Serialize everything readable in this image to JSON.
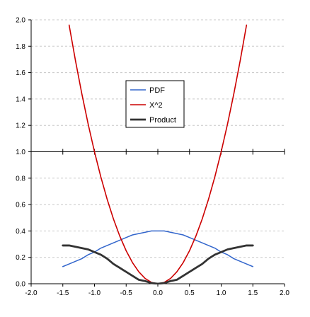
{
  "chart_data": {
    "type": "line",
    "title": "",
    "xlabel": "",
    "ylabel": "",
    "xlim": [
      -2.0,
      2.0
    ],
    "ylim": [
      0.0,
      2.0
    ],
    "x_ticks": [
      "-2.0",
      "-1.5",
      "-1.0",
      "-0.5",
      "0.0",
      "0.5",
      "1.0",
      "1.5",
      "2.0"
    ],
    "y_ticks": [
      "0.0",
      "0.2",
      "0.4",
      "0.6",
      "0.8",
      "1.0",
      "1.2",
      "1.4",
      "1.6",
      "1.8",
      "2.0"
    ],
    "y_gridlines": true,
    "axis_crossing_y": 1.0,
    "legend_position": "center",
    "legend": [
      "PDF",
      "X^2",
      "Product"
    ],
    "series": [
      {
        "name": "PDF",
        "color": "#3366cc",
        "x": [
          -1.5,
          -1.4,
          -1.3,
          -1.2,
          -1.1,
          -1.0,
          -0.9,
          -0.8,
          -0.7,
          -0.6,
          -0.5,
          -0.4,
          -0.3,
          -0.2,
          -0.1,
          0.0,
          0.1,
          0.2,
          0.3,
          0.4,
          0.5,
          0.6,
          0.7,
          0.8,
          0.9,
          1.0,
          1.1,
          1.2,
          1.3,
          1.4,
          1.5
        ],
        "values": [
          0.13,
          0.15,
          0.17,
          0.19,
          0.22,
          0.24,
          0.27,
          0.29,
          0.31,
          0.33,
          0.35,
          0.37,
          0.38,
          0.39,
          0.4,
          0.4,
          0.4,
          0.39,
          0.38,
          0.37,
          0.35,
          0.33,
          0.31,
          0.29,
          0.27,
          0.24,
          0.22,
          0.19,
          0.17,
          0.15,
          0.13
        ]
      },
      {
        "name": "X^2",
        "color": "#cc0000",
        "x": [
          -1.4,
          -1.3,
          -1.2,
          -1.1,
          -1.0,
          -0.9,
          -0.8,
          -0.7,
          -0.6,
          -0.5,
          -0.4,
          -0.3,
          -0.2,
          -0.1,
          0.0,
          0.1,
          0.2,
          0.3,
          0.4,
          0.5,
          0.6,
          0.7,
          0.8,
          0.9,
          1.0,
          1.1,
          1.2,
          1.3,
          1.4
        ],
        "values": [
          1.96,
          1.69,
          1.44,
          1.21,
          1.0,
          0.81,
          0.64,
          0.49,
          0.36,
          0.25,
          0.16,
          0.09,
          0.04,
          0.01,
          0.0,
          0.01,
          0.04,
          0.09,
          0.16,
          0.25,
          0.36,
          0.49,
          0.64,
          0.81,
          1.0,
          1.21,
          1.44,
          1.69,
          1.96
        ]
      },
      {
        "name": "Product",
        "color": "#333333",
        "x": [
          -1.5,
          -1.4,
          -1.3,
          -1.2,
          -1.1,
          -1.0,
          -0.9,
          -0.8,
          -0.7,
          -0.6,
          -0.5,
          -0.4,
          -0.3,
          -0.2,
          -0.1,
          0.0,
          0.1,
          0.2,
          0.3,
          0.4,
          0.5,
          0.6,
          0.7,
          0.8,
          0.9,
          1.0,
          1.1,
          1.2,
          1.3,
          1.4,
          1.5
        ],
        "values": [
          0.29,
          0.29,
          0.28,
          0.27,
          0.26,
          0.24,
          0.22,
          0.19,
          0.15,
          0.12,
          0.09,
          0.06,
          0.03,
          0.02,
          0.005,
          0.0,
          0.005,
          0.02,
          0.03,
          0.06,
          0.09,
          0.12,
          0.15,
          0.19,
          0.22,
          0.24,
          0.26,
          0.27,
          0.28,
          0.29,
          0.29
        ]
      }
    ]
  }
}
